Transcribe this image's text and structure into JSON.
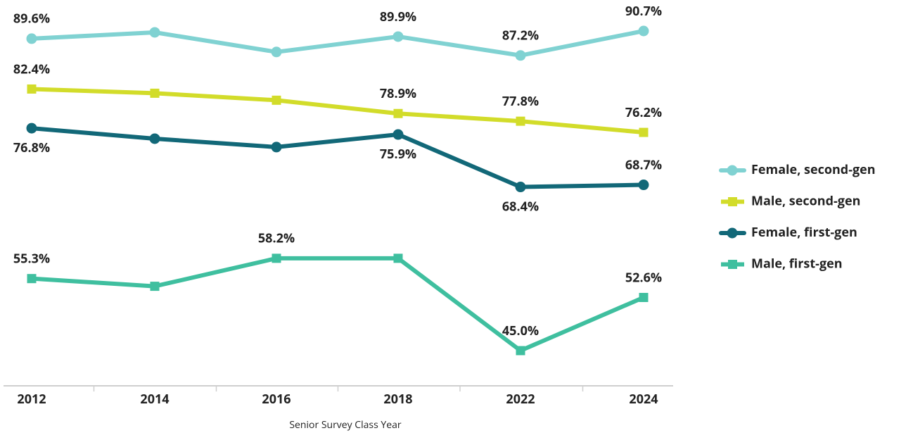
{
  "chart_data": {
    "type": "line",
    "x_label": "Senior Survey Class Year",
    "categories": [
      "2012",
      "2014",
      "2016",
      "2018",
      "2022",
      "2024"
    ],
    "series": [
      {
        "name": "Female, second-gen",
        "color": "#80d2d2",
        "marker": "circle",
        "values": [
          89.6,
          90.5,
          87.7,
          89.9,
          87.2,
          90.7
        ],
        "value_labels": [
          "89.6%",
          null,
          null,
          "89.9%",
          "87.2%",
          "90.7%"
        ]
      },
      {
        "name": "Male, second-gen",
        "color": "#d2dc2a",
        "marker": "square",
        "values": [
          82.4,
          81.8,
          80.8,
          78.9,
          77.8,
          76.2
        ],
        "value_labels": [
          "82.4%",
          null,
          null,
          "78.9%",
          "77.8%",
          "76.2%"
        ]
      },
      {
        "name": "Female, first-gen",
        "color": "#126878",
        "marker": "circle",
        "values": [
          76.8,
          75.3,
          74.1,
          75.9,
          68.4,
          68.7
        ],
        "value_labels": [
          "76.8%",
          null,
          null,
          "75.9%",
          "68.4%",
          "68.7%"
        ]
      },
      {
        "name": "Male, first-gen",
        "color": "#3fbf9f",
        "marker": "square",
        "values": [
          55.3,
          54.2,
          58.2,
          58.2,
          45.0,
          52.6
        ],
        "value_labels": [
          "55.3%",
          null,
          "58.2%",
          null,
          "45.0%",
          "52.6%"
        ]
      }
    ],
    "legend": "right"
  }
}
